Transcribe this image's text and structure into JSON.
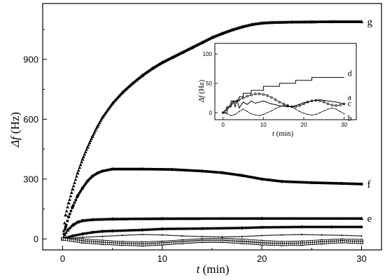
{
  "chart_data": {
    "type": "scatter",
    "title": "",
    "xlabel_italic": "t",
    "xlabel_unit": " (min)",
    "ylabel_italic": "Δf",
    "ylabel_unit": " (Hz)",
    "xlim": [
      -2,
      32
    ],
    "ylim": [
      -55,
      1180
    ],
    "xticks": [
      0,
      10,
      20,
      30
    ],
    "yticks": [
      0,
      300,
      600,
      900
    ],
    "grid": false,
    "series": [
      {
        "name": "g",
        "marker": "triangle",
        "points": [
          [
            0,
            0
          ],
          [
            0.3,
            120
          ],
          [
            0.6,
            180
          ],
          [
            1,
            250
          ],
          [
            1.5,
            330
          ],
          [
            2,
            400
          ],
          [
            2.5,
            460
          ],
          [
            3,
            515
          ],
          [
            3.5,
            565
          ],
          [
            4,
            610
          ],
          [
            5,
            680
          ],
          [
            6,
            735
          ],
          [
            7,
            780
          ],
          [
            8,
            820
          ],
          [
            9,
            855
          ],
          [
            10,
            885
          ],
          [
            11,
            910
          ],
          [
            12,
            935
          ],
          [
            13,
            960
          ],
          [
            14,
            985
          ],
          [
            15,
            1010
          ],
          [
            16,
            1030
          ],
          [
            17,
            1048
          ],
          [
            18,
            1063
          ],
          [
            19,
            1075
          ],
          [
            20,
            1082
          ],
          [
            21,
            1085
          ],
          [
            23,
            1087
          ],
          [
            25,
            1088
          ],
          [
            27,
            1089
          ],
          [
            30,
            1089
          ]
        ]
      },
      {
        "name": "f",
        "marker": "circle",
        "points": [
          [
            0,
            0
          ],
          [
            0.3,
            60
          ],
          [
            0.6,
            110
          ],
          [
            1,
            160
          ],
          [
            1.5,
            215
          ],
          [
            2,
            255
          ],
          [
            2.5,
            290
          ],
          [
            3,
            315
          ],
          [
            3.5,
            330
          ],
          [
            4,
            340
          ],
          [
            5,
            350
          ],
          [
            8,
            350
          ],
          [
            11,
            348
          ],
          [
            14,
            340
          ],
          [
            16,
            332
          ],
          [
            18,
            318
          ],
          [
            20,
            300
          ],
          [
            22,
            288
          ],
          [
            25,
            282
          ],
          [
            28,
            278
          ],
          [
            30,
            275
          ]
        ]
      },
      {
        "name": "e",
        "marker": "triangle",
        "points": [
          [
            0,
            0
          ],
          [
            0.5,
            45
          ],
          [
            1,
            70
          ],
          [
            1.5,
            85
          ],
          [
            2,
            92
          ],
          [
            3,
            97
          ],
          [
            5,
            100
          ],
          [
            10,
            102
          ],
          [
            20,
            103
          ],
          [
            30,
            103
          ]
        ]
      },
      {
        "name": "d",
        "marker": "diamond",
        "points": [
          [
            0,
            0
          ],
          [
            1,
            15
          ],
          [
            2,
            25
          ],
          [
            3,
            33
          ],
          [
            4,
            38
          ],
          [
            5,
            40
          ],
          [
            8,
            45
          ],
          [
            10,
            50
          ],
          [
            14,
            52
          ],
          [
            18,
            55
          ],
          [
            20,
            58
          ],
          [
            24,
            60
          ],
          [
            27,
            60
          ],
          [
            30,
            60
          ]
        ]
      },
      {
        "name": "c",
        "marker": "dot",
        "points": [
          [
            0,
            0
          ],
          [
            2,
            8
          ],
          [
            4,
            13
          ],
          [
            6,
            18
          ],
          [
            8,
            22
          ],
          [
            10,
            20
          ],
          [
            12,
            15
          ],
          [
            14,
            12
          ],
          [
            16,
            10
          ],
          [
            18,
            12
          ],
          [
            20,
            17
          ],
          [
            22,
            20
          ],
          [
            24,
            22
          ],
          [
            26,
            20
          ],
          [
            28,
            18
          ],
          [
            30,
            15
          ]
        ]
      },
      {
        "name": "a",
        "marker": "open-circle",
        "points": [
          [
            0,
            0
          ],
          [
            2,
            -5
          ],
          [
            4,
            -12
          ],
          [
            6,
            -18
          ],
          [
            8,
            -20
          ],
          [
            10,
            -17
          ],
          [
            12,
            -10
          ],
          [
            14,
            -4
          ],
          [
            16,
            -2
          ],
          [
            18,
            -6
          ],
          [
            20,
            -13
          ],
          [
            22,
            -18
          ],
          [
            24,
            -16
          ],
          [
            26,
            -10
          ],
          [
            28,
            -6
          ],
          [
            30,
            -8
          ]
        ]
      },
      {
        "name": "b",
        "marker": "open-square",
        "points": [
          [
            0,
            0
          ],
          [
            2,
            -15
          ],
          [
            4,
            -22
          ],
          [
            6,
            -27
          ],
          [
            8,
            -30
          ],
          [
            10,
            -25
          ],
          [
            12,
            -18
          ],
          [
            14,
            -12
          ],
          [
            16,
            -12
          ],
          [
            18,
            -18
          ],
          [
            20,
            -25
          ],
          [
            22,
            -28
          ],
          [
            24,
            -26
          ],
          [
            26,
            -20
          ],
          [
            28,
            -14
          ],
          [
            30,
            -18
          ]
        ]
      }
    ],
    "inset": {
      "xlabel_italic": "t",
      "xlabel_unit": " (min)",
      "ylabel_italic": "Δf",
      "ylabel_unit": " (Hz)",
      "xlim": [
        -2,
        33
      ],
      "ylim": [
        -12,
        118
      ],
      "xticks": [
        0,
        10,
        20,
        30
      ],
      "yticks": [
        0,
        50,
        100
      ],
      "series": [
        {
          "name": "d",
          "marker": "none",
          "points": [
            [
              0,
              0
            ],
            [
              1,
              0
            ],
            [
              1,
              10
            ],
            [
              2,
              10
            ],
            [
              2,
              20
            ],
            [
              4,
              20
            ],
            [
              4,
              27
            ],
            [
              5,
              27
            ],
            [
              5,
              33
            ],
            [
              7,
              33
            ],
            [
              7,
              38
            ],
            [
              10,
              38
            ],
            [
              10,
              45
            ],
            [
              14,
              45
            ],
            [
              14,
              50
            ],
            [
              18,
              50
            ],
            [
              18,
              55
            ],
            [
              22,
              55
            ],
            [
              22,
              60
            ],
            [
              30,
              60
            ]
          ]
        },
        {
          "name": "a",
          "marker": "open-circle",
          "points": [
            [
              0,
              0
            ],
            [
              1,
              8
            ],
            [
              2,
              14
            ],
            [
              3,
              18
            ],
            [
              4,
              22
            ],
            [
              5,
              25
            ],
            [
              6,
              28
            ],
            [
              7,
              30
            ],
            [
              8,
              32
            ],
            [
              9,
              32
            ],
            [
              10,
              31
            ],
            [
              11,
              29
            ],
            [
              12,
              26
            ],
            [
              13,
              22
            ],
            [
              14,
              18
            ],
            [
              15,
              15
            ],
            [
              16,
              12
            ],
            [
              17,
              10
            ],
            [
              18,
              10
            ],
            [
              19,
              12
            ],
            [
              20,
              15
            ],
            [
              21,
              18
            ],
            [
              22,
              20
            ],
            [
              23,
              21
            ],
            [
              24,
              20
            ],
            [
              25,
              18
            ],
            [
              26,
              15
            ],
            [
              27,
              13
            ],
            [
              28,
              12
            ],
            [
              29,
              13
            ],
            [
              30,
              15
            ]
          ]
        },
        {
          "name": "c",
          "marker": "none",
          "points": [
            [
              0,
              0
            ],
            [
              1,
              5
            ],
            [
              2,
              12
            ],
            [
              2.5,
              20
            ],
            [
              3,
              10
            ],
            [
              3.5,
              22
            ],
            [
              4,
              8
            ],
            [
              5,
              18
            ],
            [
              6,
              14
            ],
            [
              7,
              20
            ],
            [
              8,
              16
            ],
            [
              10,
              20
            ],
            [
              12,
              15
            ],
            [
              14,
              12
            ],
            [
              16,
              10
            ],
            [
              18,
              12
            ],
            [
              20,
              17
            ],
            [
              22,
              20
            ],
            [
              24,
              22
            ],
            [
              26,
              20
            ],
            [
              28,
              18
            ],
            [
              30,
              15
            ]
          ]
        },
        {
          "name": "b",
          "marker": "dot",
          "points": [
            [
              0,
              0
            ],
            [
              1,
              -2
            ],
            [
              2,
              -5
            ],
            [
              3,
              -3
            ],
            [
              4,
              2
            ],
            [
              5,
              6
            ],
            [
              6,
              2
            ],
            [
              7,
              -2
            ],
            [
              8,
              -4
            ],
            [
              9,
              -5
            ],
            [
              10,
              -3
            ],
            [
              11,
              0
            ],
            [
              12,
              3
            ],
            [
              13,
              7
            ],
            [
              14,
              10
            ],
            [
              15,
              12
            ],
            [
              16,
              12
            ],
            [
              17,
              10
            ],
            [
              18,
              6
            ],
            [
              19,
              2
            ],
            [
              20,
              -1
            ],
            [
              21,
              -3
            ],
            [
              22,
              -4
            ],
            [
              23,
              -3
            ],
            [
              24,
              0
            ],
            [
              25,
              3
            ],
            [
              26,
              6
            ],
            [
              27,
              8
            ],
            [
              28,
              6
            ],
            [
              29,
              2
            ],
            [
              30,
              -2
            ]
          ]
        }
      ]
    }
  }
}
